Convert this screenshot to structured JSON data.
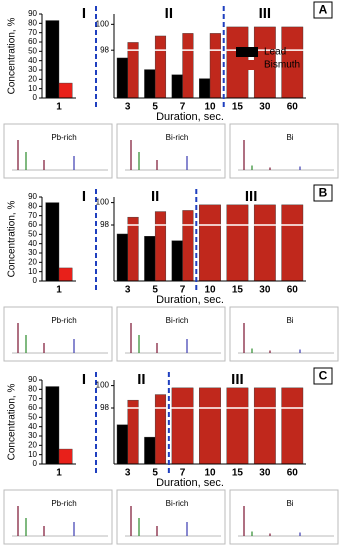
{
  "chart_data": [
    {
      "type": "bar",
      "y_label": "Concentration, %",
      "categories": [
        "1"
      ],
      "annotations": [
        "I"
      ],
      "series": [
        {
          "name": "Lead",
          "color": "#000000",
          "values": [
            83
          ]
        },
        {
          "name": "Bismuth",
          "color": "#e8201a",
          "values": [
            16
          ]
        }
      ],
      "ylim": [
        0,
        90
      ],
      "yticks": [
        0,
        10,
        20,
        30,
        40,
        50,
        60,
        70,
        80,
        90
      ]
    },
    {
      "type": "bar",
      "panel": "A",
      "x_label": "Duration, sec.",
      "categories": [
        "3",
        "5",
        "7",
        "10",
        "15",
        "30",
        "60"
      ],
      "annotations": [
        "II",
        "III"
      ],
      "legend": true,
      "series": [
        {
          "name": "Lead",
          "color": "#000000",
          "values": [
            97.4,
            96.5,
            96.1,
            95.8,
            null,
            null,
            null
          ]
        },
        {
          "name": "Bismuth",
          "color": "#c0281c",
          "values": [
            98.6,
            99.1,
            99.3,
            99.3,
            99.8,
            99.8,
            99.8
          ]
        }
      ],
      "ylim": [
        94.3,
        100.8
      ],
      "yticks": [
        98,
        100
      ]
    },
    {
      "type": "bar",
      "y_label": "Concentration, %",
      "categories": [
        "1"
      ],
      "annotations": [
        "I"
      ],
      "series": [
        {
          "name": "Lead",
          "color": "#000000",
          "values": [
            84
          ]
        },
        {
          "name": "Bismuth",
          "color": "#e8201a",
          "values": [
            14
          ]
        }
      ],
      "ylim": [
        0,
        90
      ],
      "yticks": [
        0,
        10,
        20,
        30,
        40,
        50,
        60,
        70,
        80,
        90
      ]
    },
    {
      "type": "bar",
      "panel": "B",
      "x_label": "Duration, sec.",
      "categories": [
        "3",
        "5",
        "7",
        "10",
        "15",
        "30",
        "60"
      ],
      "annotations": [
        "II",
        "III"
      ],
      "series": [
        {
          "name": "Lead",
          "color": "#000000",
          "values": [
            97.2,
            97.0,
            96.6,
            null,
            null,
            null,
            null
          ]
        },
        {
          "name": "Bismuth",
          "color": "#c0281c",
          "values": [
            98.7,
            99.2,
            99.3,
            99.8,
            99.8,
            99.8,
            99.8
          ]
        }
      ],
      "ylim": [
        93,
        100.5
      ],
      "yticks": [
        98,
        100
      ]
    },
    {
      "type": "bar",
      "y_label": "Concentration, %",
      "categories": [
        "1"
      ],
      "annotations": [
        "I"
      ],
      "series": [
        {
          "name": "Lead",
          "color": "#000000",
          "values": [
            83
          ]
        },
        {
          "name": "Bismuth",
          "color": "#e8201a",
          "values": [
            16
          ]
        }
      ],
      "ylim": [
        0,
        90
      ],
      "yticks": [
        0,
        10,
        20,
        30,
        40,
        50,
        60,
        70,
        80,
        90
      ]
    },
    {
      "type": "bar",
      "panel": "C",
      "x_label": "Duration, sec.",
      "categories": [
        "3",
        "5",
        "7",
        "10",
        "15",
        "30",
        "60"
      ],
      "annotations": [
        "II",
        "III"
      ],
      "series": [
        {
          "name": "Lead",
          "color": "#000000",
          "values": [
            96.5,
            95.4,
            null,
            null,
            null,
            null,
            null
          ]
        },
        {
          "name": "Bismuth",
          "color": "#c0281c",
          "values": [
            98.7,
            99.2,
            99.8,
            99.8,
            99.8,
            99.8,
            99.8
          ]
        }
      ],
      "ylim": [
        93,
        100.5
      ],
      "yticks": [
        98,
        100
      ]
    }
  ],
  "spectra": [
    [
      "Pb-rich",
      "Bi-rich",
      "Bi"
    ],
    [
      "Pb-rich",
      "Bi-rich",
      "Bi"
    ],
    [
      "Pb-rich",
      "Bi-rich",
      "Bi"
    ]
  ]
}
